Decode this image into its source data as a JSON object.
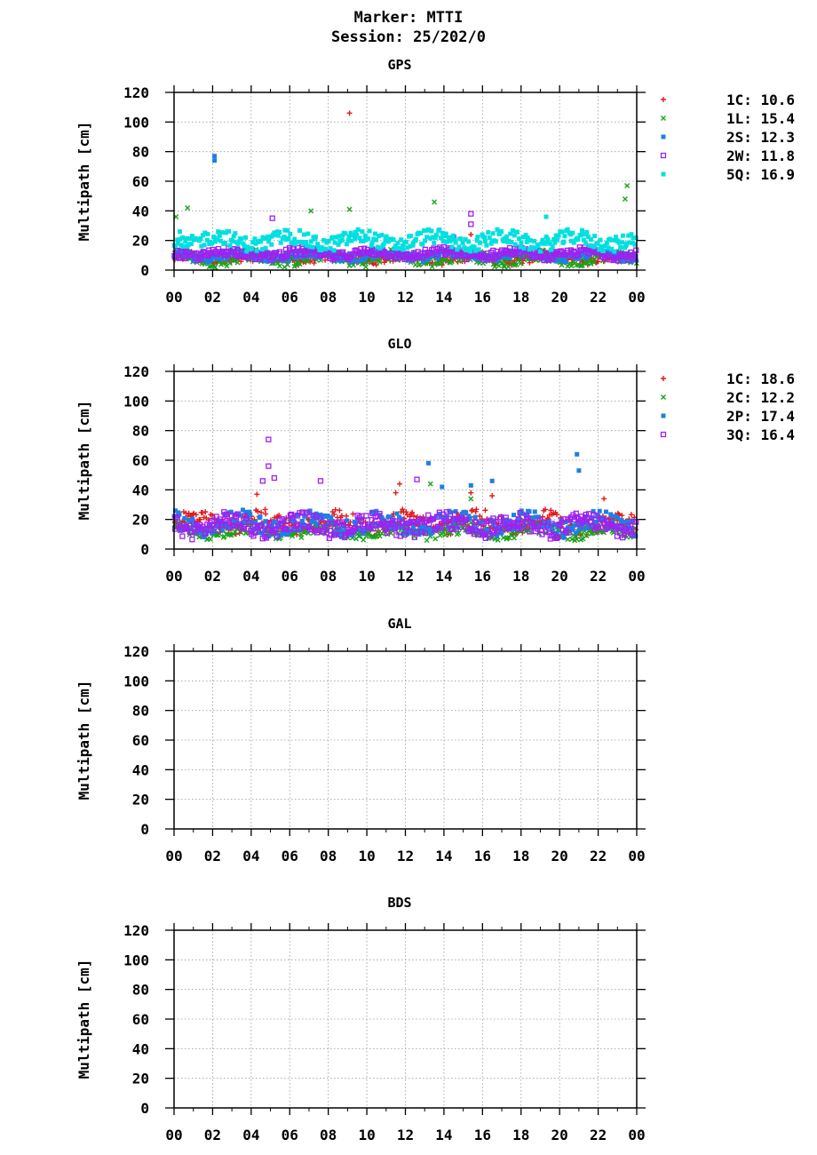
{
  "header": {
    "marker": "Marker: MTTI",
    "session": "Session: 25/202/0"
  },
  "chart_data": [
    {
      "type": "scatter",
      "title": "GPS",
      "xlabel": "",
      "ylabel": "Multipath [cm]",
      "ylim": [
        0,
        120
      ],
      "xlim": [
        0,
        24
      ],
      "yticks": [
        "0",
        "20",
        "40",
        "60",
        "80",
        "100",
        "120"
      ],
      "xticks": [
        "00",
        "02",
        "04",
        "06",
        "08",
        "10",
        "12",
        "14",
        "16",
        "18",
        "20",
        "22",
        "00"
      ],
      "series": [
        {
          "name": "1C",
          "legend": "1C: 10.6",
          "color": "#e41a1c",
          "marker": "plus",
          "base": 8,
          "spread": 3,
          "bursts": [
            [
              9.1,
              106
            ],
            [
              15.4,
              24
            ]
          ]
        },
        {
          "name": "1L",
          "legend": "1L: 15.4",
          "color": "#1aa31a",
          "marker": "cross",
          "base": 8,
          "spread": 4,
          "bursts": [
            [
              0.1,
              36
            ],
            [
              0.7,
              42
            ],
            [
              7.1,
              40
            ],
            [
              9.1,
              41
            ],
            [
              13.5,
              46
            ],
            [
              23.5,
              57
            ],
            [
              23.4,
              48
            ]
          ]
        },
        {
          "name": "2S",
          "legend": "2S: 12.3",
          "color": "#1f7fe5",
          "marker": "square",
          "base": 10,
          "spread": 3,
          "bursts": [
            [
              2.1,
              77
            ],
            [
              2.1,
              74
            ]
          ]
        },
        {
          "name": "2W",
          "legend": "2W: 11.8",
          "color": "#a020f0",
          "marker": "osquare",
          "base": 11,
          "spread": 3,
          "bursts": [
            [
              5.1,
              35
            ],
            [
              15.4,
              38
            ],
            [
              15.4,
              31
            ],
            [
              14.5,
              22
            ]
          ]
        },
        {
          "name": "5Q",
          "legend": "5Q: 16.9",
          "color": "#00e0e0",
          "marker": "square",
          "base": 20,
          "spread": 5,
          "bursts": [
            [
              19.3,
              36
            ],
            [
              0.3,
              26
            ]
          ]
        }
      ]
    },
    {
      "type": "scatter",
      "title": "GLO",
      "xlabel": "",
      "ylabel": "Multipath [cm]",
      "ylim": [
        0,
        120
      ],
      "xlim": [
        0,
        24
      ],
      "yticks": [
        "0",
        "20",
        "40",
        "60",
        "80",
        "100",
        "120"
      ],
      "xticks": [
        "00",
        "02",
        "04",
        "06",
        "08",
        "10",
        "12",
        "14",
        "16",
        "18",
        "20",
        "22",
        "00"
      ],
      "series": [
        {
          "name": "1C",
          "legend": "1C: 18.6",
          "color": "#e41a1c",
          "marker": "plus",
          "base": 18,
          "spread": 6,
          "bursts": [
            [
              11.7,
              44
            ],
            [
              11.5,
              38
            ],
            [
              4.3,
              37
            ],
            [
              15.4,
              38
            ],
            [
              16.5,
              36
            ],
            [
              22.3,
              34
            ]
          ]
        },
        {
          "name": "2C",
          "legend": "2C: 12.2",
          "color": "#1aa31a",
          "marker": "cross",
          "base": 12,
          "spread": 4,
          "bursts": [
            [
              15.4,
              34
            ],
            [
              13.3,
              44
            ]
          ]
        },
        {
          "name": "2P",
          "legend": "2P: 17.4",
          "color": "#1f7fe5",
          "marker": "square",
          "base": 17,
          "spread": 6,
          "bursts": [
            [
              13.2,
              58
            ],
            [
              20.9,
              64
            ],
            [
              21.0,
              53
            ],
            [
              16.5,
              46
            ],
            [
              15.4,
              43
            ],
            [
              13.9,
              42
            ]
          ]
        },
        {
          "name": "3Q",
          "legend": "3Q: 16.4",
          "color": "#a020f0",
          "marker": "osquare",
          "base": 16,
          "spread": 6,
          "bursts": [
            [
              4.9,
              74
            ],
            [
              4.9,
              56
            ],
            [
              5.2,
              48
            ],
            [
              4.6,
              46
            ],
            [
              7.6,
              46
            ],
            [
              12.6,
              47
            ]
          ]
        }
      ]
    },
    {
      "type": "scatter",
      "title": "GAL",
      "xlabel": "",
      "ylabel": "Multipath [cm]",
      "ylim": [
        0,
        120
      ],
      "xlim": [
        0,
        24
      ],
      "yticks": [
        "0",
        "20",
        "40",
        "60",
        "80",
        "100",
        "120"
      ],
      "xticks": [
        "00",
        "02",
        "04",
        "06",
        "08",
        "10",
        "12",
        "14",
        "16",
        "18",
        "20",
        "22",
        "00"
      ],
      "series": []
    },
    {
      "type": "scatter",
      "title": "BDS",
      "xlabel": "",
      "ylabel": "Multipath [cm]",
      "ylim": [
        0,
        120
      ],
      "xlim": [
        0,
        24
      ],
      "yticks": [
        "0",
        "20",
        "40",
        "60",
        "80",
        "100",
        "120"
      ],
      "xticks": [
        "00",
        "02",
        "04",
        "06",
        "08",
        "10",
        "12",
        "14",
        "16",
        "18",
        "20",
        "22",
        "00"
      ],
      "series": []
    }
  ]
}
